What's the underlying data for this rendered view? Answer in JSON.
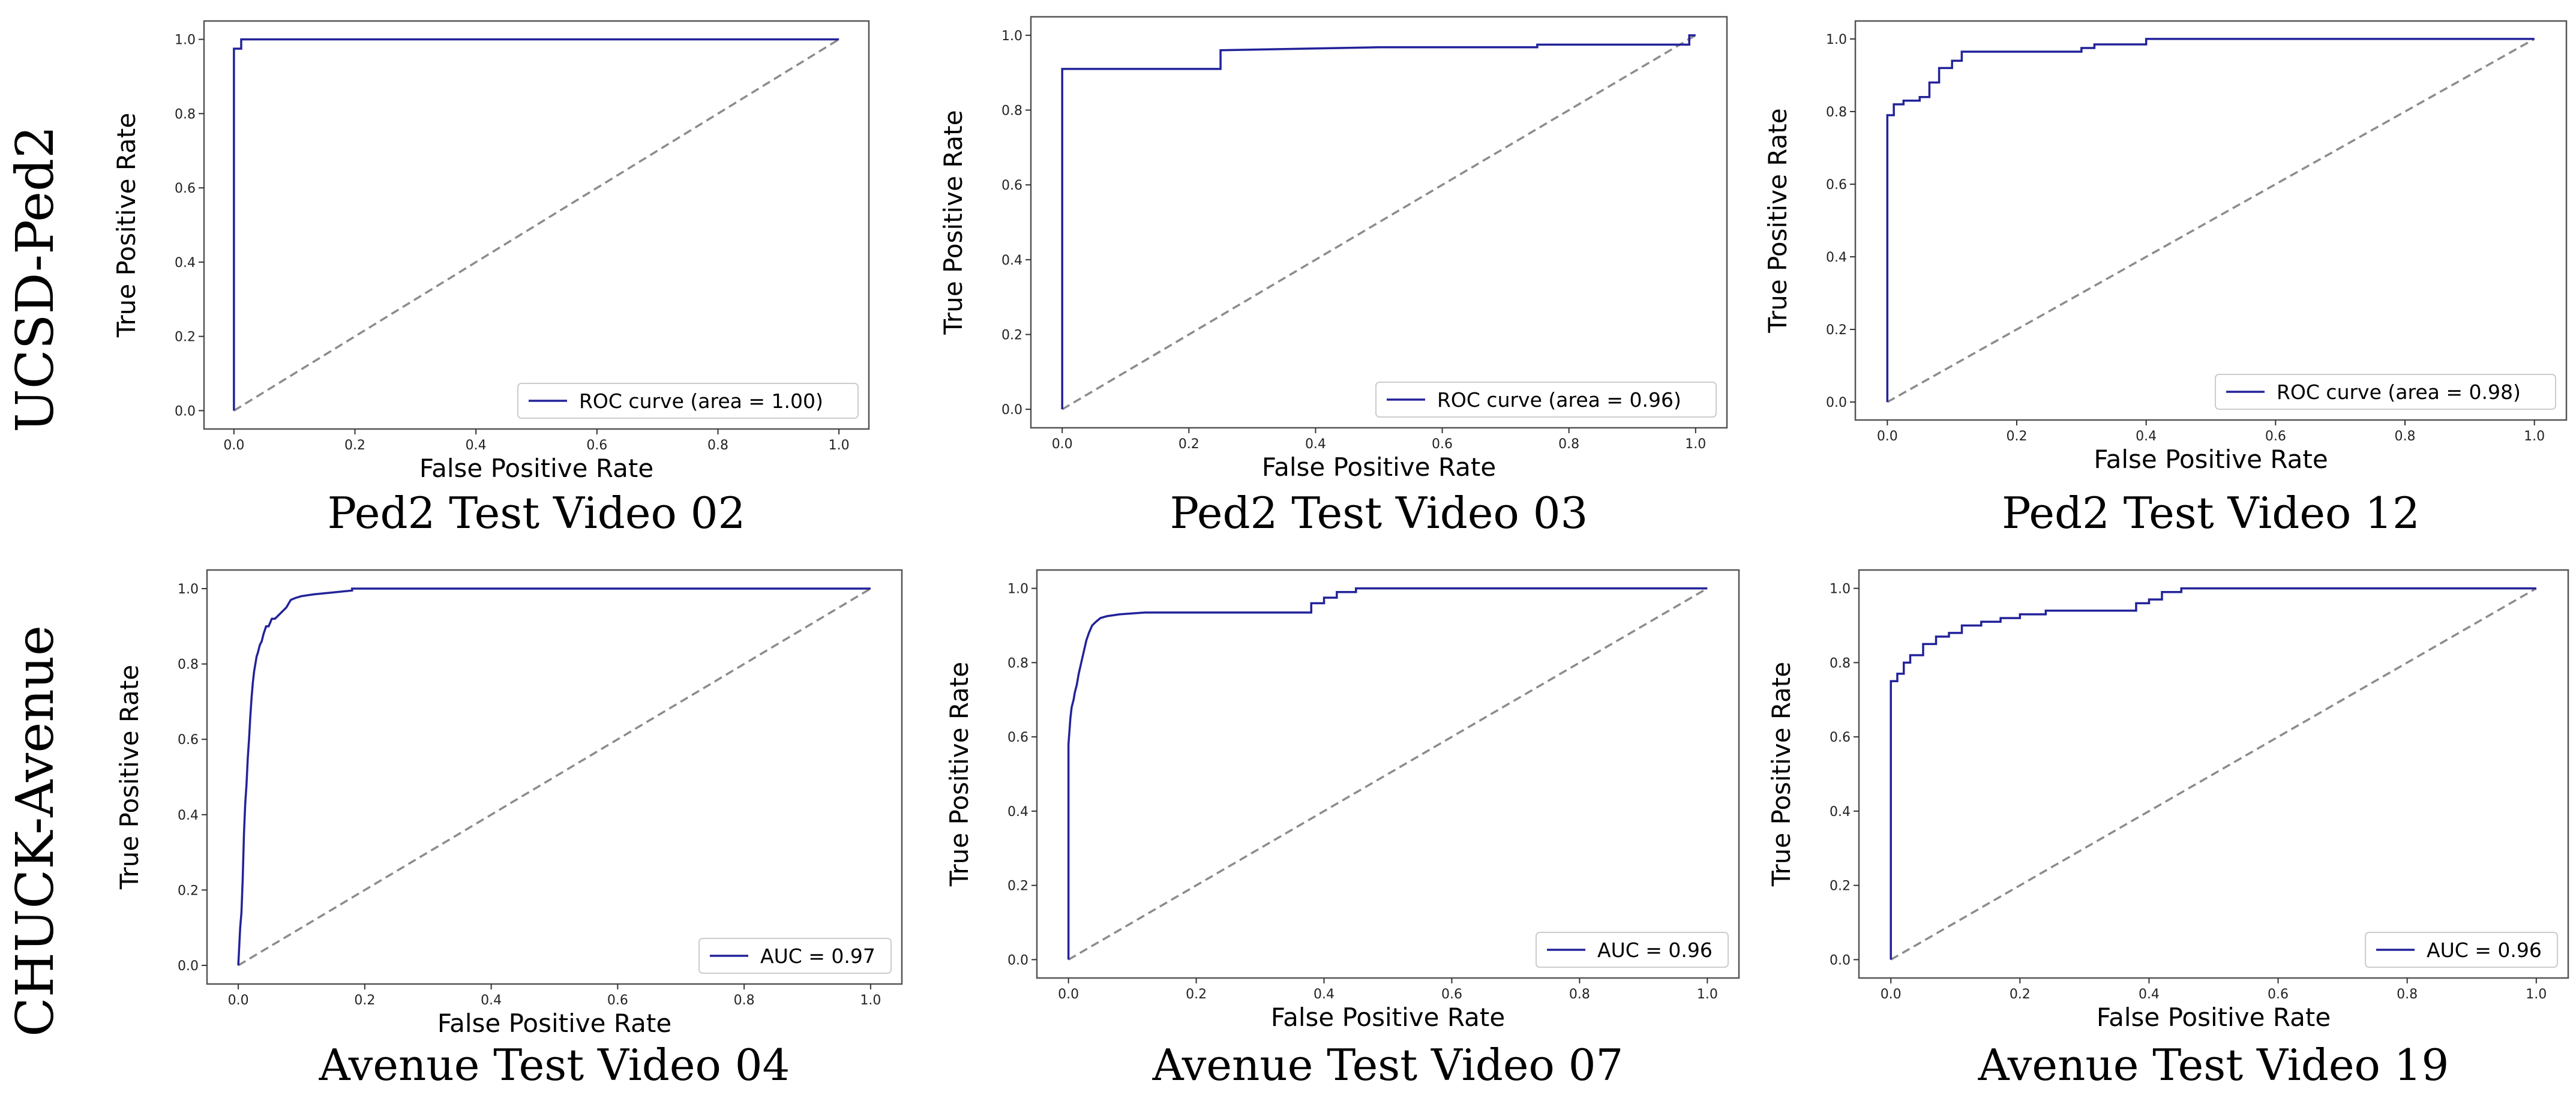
{
  "row_labels": [
    "UCSD-Ped2",
    "CHUCK-Avenue"
  ],
  "colors": {
    "roc": "#22229a",
    "diagonal": "#8c8c8c"
  },
  "chart_data": [
    {
      "type": "line",
      "caption": "Ped2 Test Video 02",
      "xlabel": "False Positive Rate",
      "ylabel": "True Positive Rate",
      "xlim": [
        0,
        1
      ],
      "ylim": [
        0,
        1
      ],
      "xticks": [
        "0.0",
        "0.2",
        "0.4",
        "0.6",
        "0.8",
        "1.0"
      ],
      "yticks": [
        "0.0",
        "0.2",
        "0.4",
        "0.6",
        "0.8",
        "1.0"
      ],
      "legend": "ROC curve (area = 1.00)",
      "legend_position": "lower-right",
      "series": [
        {
          "x": [
            0,
            0,
            0.012,
            0.012,
            1
          ],
          "y": [
            0,
            0.975,
            0.975,
            1,
            1
          ]
        },
        {
          "x": [
            0,
            1
          ],
          "y": [
            0,
            1
          ]
        }
      ]
    },
    {
      "type": "line",
      "caption": "Ped2 Test Video 03",
      "xlabel": "False Positive Rate",
      "ylabel": "True Positive Rate",
      "xlim": [
        0,
        1
      ],
      "ylim": [
        0,
        1
      ],
      "xticks": [
        "0.0",
        "0.2",
        "0.4",
        "0.6",
        "0.8",
        "1.0"
      ],
      "yticks": [
        "0.0",
        "0.2",
        "0.4",
        "0.6",
        "0.8",
        "1.0"
      ],
      "legend": "ROC curve (area = 0.96)",
      "legend_position": "lower-right",
      "series": [
        {
          "x": [
            0,
            0,
            0.25,
            0.25,
            0.5,
            0.75,
            0.75,
            0.99,
            0.99,
            1
          ],
          "y": [
            0,
            0.91,
            0.91,
            0.96,
            0.968,
            0.968,
            0.975,
            0.975,
            1,
            1
          ]
        },
        {
          "x": [
            0,
            1
          ],
          "y": [
            0,
            1
          ]
        }
      ]
    },
    {
      "type": "line",
      "caption": "Ped2 Test Video 12",
      "xlabel": "False Positive Rate",
      "ylabel": "True Positive Rate",
      "xlim": [
        0,
        1
      ],
      "ylim": [
        0,
        1
      ],
      "xticks": [
        "0.0",
        "0.2",
        "0.4",
        "0.6",
        "0.8",
        "1.0"
      ],
      "yticks": [
        "0.0",
        "0.2",
        "0.4",
        "0.6",
        "0.8",
        "1.0"
      ],
      "legend": "ROC curve (area = 0.98)",
      "legend_position": "lower-right",
      "series": [
        {
          "x": [
            0,
            0,
            0.01,
            0.01,
            0.025,
            0.025,
            0.05,
            0.05,
            0.065,
            0.065,
            0.08,
            0.08,
            0.1,
            0.1,
            0.115,
            0.115,
            0.3,
            0.3,
            0.32,
            0.32,
            0.4,
            0.4,
            1
          ],
          "y": [
            0,
            0.79,
            0.79,
            0.82,
            0.82,
            0.83,
            0.83,
            0.84,
            0.84,
            0.88,
            0.88,
            0.92,
            0.92,
            0.94,
            0.94,
            0.965,
            0.965,
            0.975,
            0.975,
            0.985,
            0.985,
            1,
            1
          ]
        },
        {
          "x": [
            0,
            1
          ],
          "y": [
            0,
            1
          ]
        }
      ]
    },
    {
      "type": "line",
      "caption": "Avenue Test Video 04",
      "xlabel": "False Positive Rate",
      "ylabel": "True Positive Rate",
      "xlim": [
        0,
        1
      ],
      "ylim": [
        0,
        1
      ],
      "xticks": [
        "0.0",
        "0.2",
        "0.4",
        "0.6",
        "0.8",
        "1.0"
      ],
      "yticks": [
        "0.0",
        "0.2",
        "0.4",
        "0.6",
        "0.8",
        "1.0"
      ],
      "legend": "AUC = 0.97",
      "legend_position": "lower-right",
      "series": [
        {
          "x": [
            0,
            0.003,
            0.005,
            0.007,
            0.009,
            0.011,
            0.013,
            0.015,
            0.017,
            0.019,
            0.021,
            0.023,
            0.025,
            0.027,
            0.029,
            0.031,
            0.034,
            0.037,
            0.04,
            0.044,
            0.048,
            0.053,
            0.058,
            0.064,
            0.07,
            0.076,
            0.083,
            0.09,
            0.1,
            0.12,
            0.15,
            0.18,
            0.18,
            1
          ],
          "y": [
            0,
            0.1,
            0.14,
            0.23,
            0.35,
            0.43,
            0.48,
            0.55,
            0.6,
            0.66,
            0.71,
            0.75,
            0.78,
            0.8,
            0.82,
            0.83,
            0.85,
            0.86,
            0.88,
            0.9,
            0.9,
            0.92,
            0.92,
            0.93,
            0.94,
            0.95,
            0.97,
            0.975,
            0.98,
            0.985,
            0.99,
            0.995,
            1,
            1
          ]
        },
        {
          "x": [
            0,
            1
          ],
          "y": [
            0,
            1
          ]
        }
      ]
    },
    {
      "type": "line",
      "caption": "Avenue Test Video 07",
      "xlabel": "False Positive Rate",
      "ylabel": "True Positive Rate",
      "xlim": [
        0,
        1
      ],
      "ylim": [
        0,
        1
      ],
      "xticks": [
        "0.0",
        "0.2",
        "0.4",
        "0.6",
        "0.8",
        "1.0"
      ],
      "yticks": [
        "0.0",
        "0.2",
        "0.4",
        "0.6",
        "0.8",
        "1.0"
      ],
      "legend": "AUC = 0.96",
      "legend_position": "lower-right",
      "series": [
        {
          "x": [
            0,
            0,
            0.003,
            0.005,
            0.008,
            0.01,
            0.013,
            0.016,
            0.02,
            0.024,
            0.028,
            0.032,
            0.037,
            0.043,
            0.05,
            0.06,
            0.08,
            0.12,
            0.2,
            0.3,
            0.38,
            0.38,
            0.4,
            0.4,
            0.42,
            0.42,
            0.45,
            0.45,
            1
          ],
          "y": [
            0,
            0.58,
            0.65,
            0.68,
            0.7,
            0.72,
            0.74,
            0.77,
            0.8,
            0.83,
            0.86,
            0.88,
            0.9,
            0.91,
            0.92,
            0.925,
            0.93,
            0.935,
            0.935,
            0.935,
            0.935,
            0.96,
            0.96,
            0.975,
            0.975,
            0.99,
            0.99,
            1,
            1
          ]
        },
        {
          "x": [
            0,
            1
          ],
          "y": [
            0,
            1
          ]
        }
      ]
    },
    {
      "type": "line",
      "caption": "Avenue Test Video 19",
      "xlabel": "False Positive Rate",
      "ylabel": "True Positive Rate",
      "xlim": [
        0,
        1
      ],
      "ylim": [
        0,
        1
      ],
      "xticks": [
        "0.0",
        "0.2",
        "0.4",
        "0.6",
        "0.8",
        "1.0"
      ],
      "yticks": [
        "0.0",
        "0.2",
        "0.4",
        "0.6",
        "0.8",
        "1.0"
      ],
      "legend": "AUC = 0.96",
      "legend_position": "lower-right",
      "series": [
        {
          "x": [
            0,
            0,
            0.01,
            0.01,
            0.02,
            0.02,
            0.03,
            0.03,
            0.05,
            0.05,
            0.07,
            0.07,
            0.09,
            0.09,
            0.11,
            0.11,
            0.14,
            0.14,
            0.17,
            0.17,
            0.2,
            0.2,
            0.24,
            0.24,
            0.38,
            0.38,
            0.4,
            0.4,
            0.42,
            0.42,
            0.45,
            0.45,
            1
          ],
          "y": [
            0,
            0.75,
            0.75,
            0.77,
            0.77,
            0.8,
            0.8,
            0.82,
            0.82,
            0.85,
            0.85,
            0.87,
            0.87,
            0.88,
            0.88,
            0.9,
            0.9,
            0.91,
            0.91,
            0.92,
            0.92,
            0.93,
            0.93,
            0.94,
            0.94,
            0.96,
            0.96,
            0.97,
            0.97,
            0.99,
            0.99,
            1,
            1
          ]
        },
        {
          "x": [
            0,
            1
          ],
          "y": [
            0,
            1
          ]
        }
      ]
    }
  ]
}
